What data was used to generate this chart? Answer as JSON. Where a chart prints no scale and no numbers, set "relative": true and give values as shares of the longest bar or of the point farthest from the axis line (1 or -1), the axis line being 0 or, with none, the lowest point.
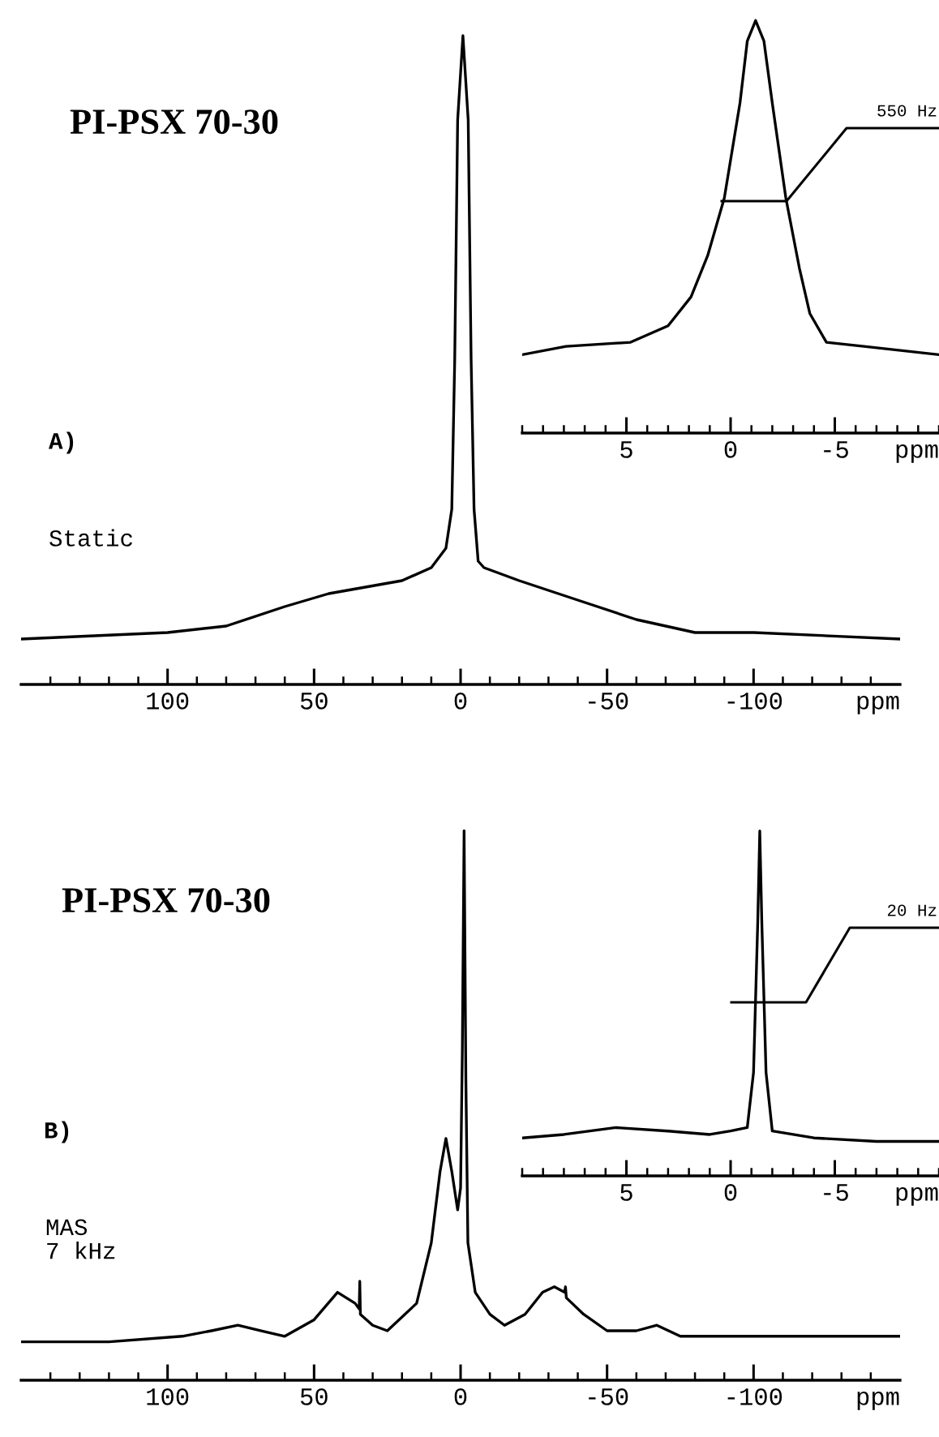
{
  "chart_data": [
    {
      "type": "line",
      "title": "PI-PSX 70-30",
      "xlabel": "ppm",
      "annotations": [
        "A)",
        "Static"
      ],
      "relative": true,
      "xlim": [
        150,
        -150
      ],
      "xticks": [
        {
          "value": 140,
          "label": null
        },
        {
          "value": 130,
          "label": null
        },
        {
          "value": 120,
          "label": null
        },
        {
          "value": 110,
          "label": null
        },
        100,
        {
          "value": 90,
          "label": null
        },
        {
          "value": 80,
          "label": null
        },
        {
          "value": 70,
          "label": null
        },
        {
          "value": 60,
          "label": null
        },
        50,
        {
          "value": 40,
          "label": null
        },
        {
          "value": 30,
          "label": null
        },
        {
          "value": 20,
          "label": null
        },
        {
          "value": 10,
          "label": null
        },
        0,
        {
          "value": -10,
          "label": null
        },
        {
          "value": -20,
          "label": null
        },
        {
          "value": -30,
          "label": null
        },
        {
          "value": -40,
          "label": null
        },
        -50,
        {
          "value": -60,
          "label": null
        },
        {
          "value": -70,
          "label": null
        },
        {
          "value": -80,
          "label": null
        },
        {
          "value": -90,
          "label": null
        },
        -100,
        {
          "value": -110,
          "label": null
        },
        {
          "value": -120,
          "label": null
        },
        {
          "value": -130,
          "label": null
        },
        {
          "value": -140,
          "label": null
        }
      ],
      "x": [
        150,
        100,
        80,
        60,
        45,
        20,
        10,
        5,
        3,
        2,
        1,
        -0.8,
        -2.6,
        -3.6,
        -4.6,
        -6,
        -8,
        -20,
        -40,
        -60,
        -80,
        -100,
        -150
      ],
      "series": [
        {
          "color": "#000000",
          "values": [
            0.07,
            0.08,
            0.09,
            0.12,
            0.14,
            0.16,
            0.18,
            0.21,
            0.27,
            0.5,
            0.87,
            1,
            0.87,
            0.5,
            0.27,
            0.19,
            0.18,
            0.16,
            0.13,
            0.1,
            0.08,
            0.08,
            0.07
          ]
        }
      ]
    },
    {
      "type": "line",
      "xlabel": "ppm",
      "annotations": [
        "550 Hz"
      ],
      "relative": true,
      "xlim": [
        10,
        -10
      ],
      "xticks": [
        {
          "value": 10,
          "label": null
        },
        {
          "value": 9,
          "label": null
        },
        {
          "value": 8,
          "label": null
        },
        {
          "value": 7,
          "label": null
        },
        {
          "value": 6,
          "label": null
        },
        5,
        {
          "value": 4,
          "label": null
        },
        {
          "value": 3,
          "label": null
        },
        {
          "value": 2,
          "label": null
        },
        {
          "value": 1,
          "label": null
        },
        0,
        {
          "value": -1,
          "label": null
        },
        {
          "value": -2,
          "label": null
        },
        {
          "value": -3,
          "label": null
        },
        {
          "value": -4,
          "label": null
        },
        -5,
        {
          "value": -6,
          "label": null
        },
        {
          "value": -7,
          "label": null
        },
        {
          "value": -8,
          "label": null
        },
        {
          "value": -9,
          "label": null
        },
        {
          "value": -10,
          "label": null
        }
      ],
      "x": [
        10,
        7.9,
        4.8,
        3,
        1.9,
        1.1,
        0.3,
        -0.45,
        -0.8,
        -1.2,
        -1.6,
        -2,
        -2.65,
        -3.3,
        -3.8,
        -4.6,
        -6.4,
        -10
      ],
      "series": [
        {
          "color": "#000000",
          "values": [
            0.19,
            0.21,
            0.22,
            0.26,
            0.33,
            0.43,
            0.57,
            0.8,
            0.95,
            1,
            0.95,
            0.8,
            0.57,
            0.4,
            0.29,
            0.22,
            0.21,
            0.19
          ]
        }
      ]
    },
    {
      "type": "line",
      "title": "PI-PSX 70-30",
      "xlabel": "ppm",
      "annotations": [
        "B)",
        "MAS\n7 kHz"
      ],
      "relative": true,
      "xlim": [
        150,
        -150
      ],
      "xticks": [
        {
          "value": 140,
          "label": null
        },
        {
          "value": 130,
          "label": null
        },
        {
          "value": 120,
          "label": null
        },
        {
          "value": 110,
          "label": null
        },
        100,
        {
          "value": 90,
          "label": null
        },
        {
          "value": 80,
          "label": null
        },
        {
          "value": 70,
          "label": null
        },
        {
          "value": 60,
          "label": null
        },
        50,
        {
          "value": 40,
          "label": null
        },
        {
          "value": 30,
          "label": null
        },
        {
          "value": 20,
          "label": null
        },
        {
          "value": 10,
          "label": null
        },
        0,
        {
          "value": -10,
          "label": null
        },
        {
          "value": -20,
          "label": null
        },
        {
          "value": -30,
          "label": null
        },
        {
          "value": -40,
          "label": null
        },
        -50,
        {
          "value": -60,
          "label": null
        },
        {
          "value": -70,
          "label": null
        },
        {
          "value": -80,
          "label": null
        },
        {
          "value": -90,
          "label": null
        },
        -100,
        {
          "value": -110,
          "label": null
        },
        {
          "value": -120,
          "label": null
        },
        {
          "value": -130,
          "label": null
        },
        {
          "value": -140,
          "label": null
        }
      ],
      "x": [
        150,
        120,
        95,
        85,
        76,
        68,
        60,
        50,
        42,
        36,
        34.6,
        34.4,
        34.2,
        30,
        25,
        15,
        10,
        7,
        5,
        3,
        1,
        0,
        -0.6,
        -1.2,
        -1.8,
        -2.5,
        -5,
        -10,
        -15,
        -22,
        -28,
        -32,
        -35.5,
        -35.8,
        -36.1,
        -42,
        -50,
        -60,
        -67,
        -75,
        -85,
        -100,
        -150
      ],
      "series": [
        {
          "color": "#000000",
          "values": [
            0.07,
            0.07,
            0.08,
            0.09,
            0.1,
            0.09,
            0.08,
            0.11,
            0.16,
            0.14,
            0.13,
            0.18,
            0.12,
            0.1,
            0.09,
            0.14,
            0.25,
            0.38,
            0.44,
            0.38,
            0.31,
            0.35,
            0.6,
            1,
            0.55,
            0.25,
            0.16,
            0.12,
            0.1,
            0.12,
            0.16,
            0.17,
            0.16,
            0.17,
            0.15,
            0.12,
            0.09,
            0.09,
            0.1,
            0.08,
            0.08,
            0.08,
            0.08
          ]
        }
      ]
    },
    {
      "type": "line",
      "xlabel": "ppm",
      "annotations": [
        "20 Hz"
      ],
      "relative": true,
      "xlim": [
        10,
        -10
      ],
      "xticks": [
        {
          "value": 10,
          "label": null
        },
        {
          "value": 9,
          "label": null
        },
        {
          "value": 8,
          "label": null
        },
        {
          "value": 7,
          "label": null
        },
        {
          "value": 6,
          "label": null
        },
        5,
        {
          "value": 4,
          "label": null
        },
        {
          "value": 3,
          "label": null
        },
        {
          "value": 2,
          "label": null
        },
        {
          "value": 1,
          "label": null
        },
        0,
        {
          "value": -1,
          "label": null
        },
        {
          "value": -2,
          "label": null
        },
        {
          "value": -3,
          "label": null
        },
        {
          "value": -4,
          "label": null
        },
        -5,
        {
          "value": -6,
          "label": null
        },
        {
          "value": -7,
          "label": null
        },
        {
          "value": -8,
          "label": null
        },
        {
          "value": -9,
          "label": null
        },
        {
          "value": -10,
          "label": null
        }
      ],
      "x": [
        10,
        8,
        5.5,
        3,
        1,
        0,
        -0.8,
        -1.1,
        -1.3,
        -1.4,
        -1.5,
        -1.7,
        -2,
        -4,
        -7,
        -10
      ],
      "series": [
        {
          "color": "#000000",
          "values": [
            0.11,
            0.12,
            0.14,
            0.13,
            0.12,
            0.13,
            0.14,
            0.3,
            0.73,
            1,
            0.73,
            0.3,
            0.13,
            0.11,
            0.1,
            0.1
          ]
        }
      ]
    }
  ]
}
